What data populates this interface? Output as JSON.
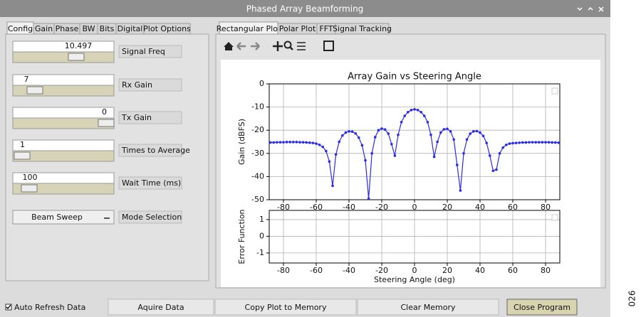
{
  "window": {
    "title": "Phased Array Beamforming"
  },
  "left_tabs": [
    "Config",
    "Gain",
    "Phase",
    "BW",
    "Bits",
    "Digital",
    "Plot Options"
  ],
  "controls": [
    {
      "value": 10.497,
      "label": "Signal Freq"
    },
    {
      "value": 7,
      "label": "Rx Gain"
    },
    {
      "value": 0,
      "label": "Tx Gain"
    },
    {
      "value": 1,
      "label": "Times to Average"
    },
    {
      "value": 100,
      "label": "Wait Time (ms)"
    }
  ],
  "mode": {
    "value": "Beam Sweep",
    "label": "Mode Selection"
  },
  "right_tabs": [
    "Rectangular Plot",
    "Polar Plot",
    "FFT",
    "Signal Tracking"
  ],
  "main_plot": {
    "type": "line",
    "title": "Array Gain vs Steering Angle",
    "ylabel": "Gain (dBFS)",
    "x": [
      -88,
      -86,
      -84,
      -82,
      -80,
      -78,
      -76,
      -74,
      -72,
      -70,
      -68,
      -66,
      -64,
      -62,
      -60,
      -58,
      -56,
      -54,
      -52,
      -50,
      -48,
      -46,
      -44,
      -42,
      -40,
      -38,
      -36,
      -34,
      -32,
      -30,
      -28,
      -26,
      -24,
      -22,
      -20,
      -18,
      -16,
      -14,
      -12,
      -10,
      -8,
      -6,
      -4,
      -2,
      0,
      2,
      4,
      6,
      8,
      10,
      12,
      14,
      16,
      18,
      20,
      22,
      24,
      26,
      28,
      30,
      32,
      34,
      36,
      38,
      40,
      42,
      44,
      46,
      48,
      50,
      52,
      54,
      56,
      58,
      60,
      62,
      64,
      66,
      68,
      70,
      72,
      74,
      76,
      78,
      80,
      82,
      84,
      86,
      88
    ],
    "series": [
      {
        "color": "#2b2bf0",
        "values": [
          -25.3,
          -25.3,
          -25.2,
          -25.2,
          -25.2,
          -25.1,
          -25.1,
          -25.1,
          -25.1,
          -25.2,
          -25.2,
          -25.3,
          -25.4,
          -25.5,
          -25.8,
          -26.3,
          -27.2,
          -29.0,
          -33.5,
          -44,
          -30.5,
          -25.0,
          -22.3,
          -21.0,
          -20.5,
          -20.6,
          -21.4,
          -23.2,
          -26.5,
          -33,
          -49.5,
          -30,
          -23,
          -20.0,
          -19.3,
          -19.7,
          -21.5,
          -26,
          -31,
          -22,
          -16.5,
          -13.8,
          -12.2,
          -11.3,
          -11.0,
          -11.3,
          -12.2,
          -13.8,
          -16.5,
          -22,
          -31.5,
          -25,
          -21,
          -19.6,
          -19.4,
          -20.5,
          -24,
          -35,
          -46,
          -30,
          -24,
          -21.5,
          -20.5,
          -20.4,
          -21,
          -22.5,
          -25.5,
          -31,
          -37.5,
          -37,
          -30,
          -27.5,
          -26.3,
          -25.8,
          -25.6,
          -25.5,
          -25.4,
          -25.3,
          -25.3,
          -25.2,
          -25.2,
          -25.2,
          -25.2,
          -25.2,
          -25.2,
          -25.2,
          -25.3,
          -25.3,
          -25.4
        ]
      }
    ],
    "xlim": [
      -88.7,
      88.7
    ],
    "xticks": [
      -80,
      -60,
      -40,
      -20,
      0,
      20,
      40,
      60,
      80
    ],
    "ylim": [
      -50,
      0
    ],
    "yticks": [
      0,
      -10,
      -20,
      -30,
      -40,
      -50
    ],
    "grid": true
  },
  "error_plot": {
    "type": "line",
    "ylabel": "Error Function",
    "xlabel": "Steering Angle (deg)",
    "xlim": [
      -88.7,
      88.7
    ],
    "xticks": [
      -80,
      -60,
      -40,
      -20,
      0,
      20,
      40,
      60,
      80
    ],
    "ylim": [
      -1.6,
      1.55
    ],
    "yticks": [
      1,
      0,
      -1
    ],
    "grid": true
  },
  "checkbox": "Auto Refresh Data",
  "buttons": [
    "Aquire Data",
    "Copy Plot to Memory",
    "Clear Memory",
    "Close Program"
  ],
  "figure_code": "026"
}
